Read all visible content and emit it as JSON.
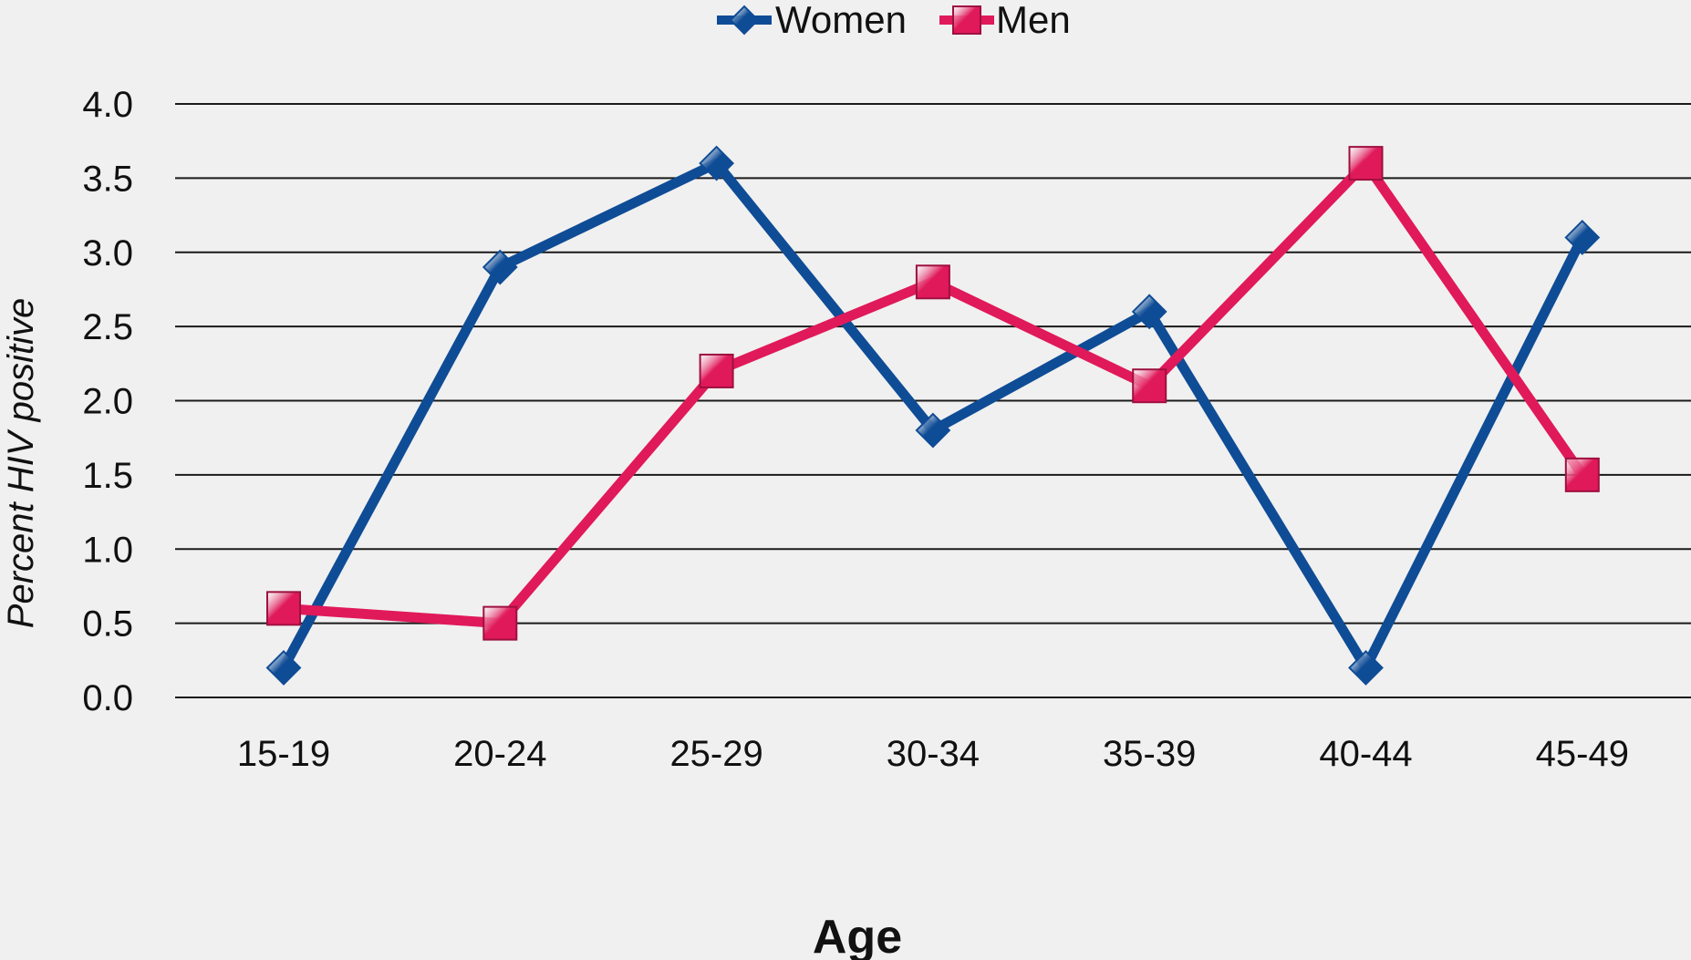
{
  "chart_data": {
    "type": "line",
    "title": "",
    "xlabel": "Age",
    "ylabel": "Percent HIV positive",
    "categories": [
      "15-19",
      "20-24",
      "25-29",
      "30-34",
      "35-39",
      "40-44",
      "45-49"
    ],
    "ylim": [
      0.0,
      4.0
    ],
    "yticks": [
      "0.0",
      "0.5",
      "1.0",
      "1.5",
      "2.0",
      "2.5",
      "3.0",
      "3.5",
      "4.0"
    ],
    "grid": true,
    "legend_position": "top-center",
    "series": [
      {
        "name": "Women",
        "marker": "diamond",
        "color": "#0f4c96",
        "values": [
          0.2,
          2.9,
          3.6,
          1.8,
          2.6,
          0.2,
          3.1
        ]
      },
      {
        "name": "Men",
        "marker": "square",
        "color": "#e0195a",
        "values": [
          0.6,
          0.5,
          2.2,
          2.8,
          2.1,
          3.6,
          1.5
        ]
      }
    ]
  }
}
